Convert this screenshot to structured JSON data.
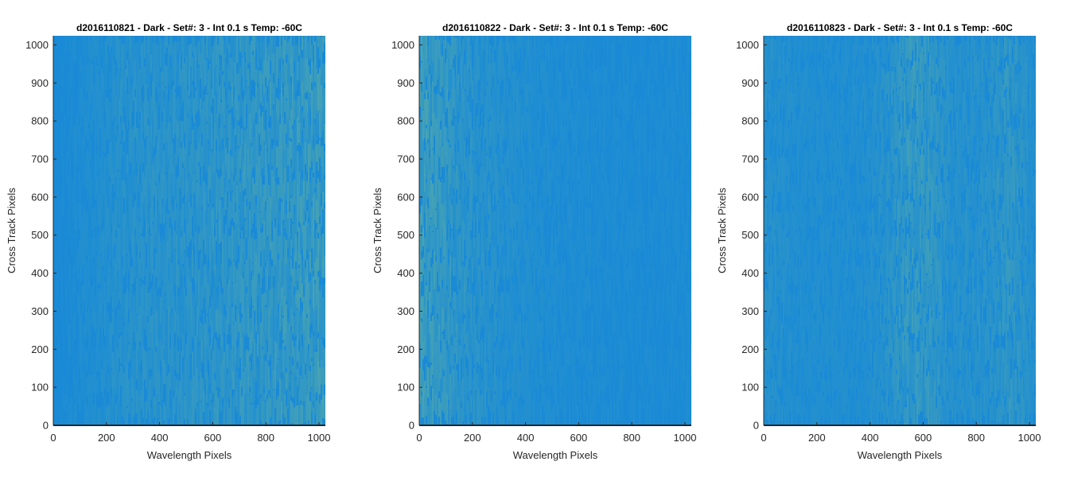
{
  "colors": {
    "base": "#1a8ad6",
    "highlight": "#7fc08a",
    "axis": "#262626"
  },
  "chart_data": [
    {
      "type": "heatmap",
      "title": "d2016110821 - Dark - Set#: 3 - Int 0.1 s Temp: -60C",
      "xlabel": "Wavelength Pixels",
      "ylabel": "Cross Track Pixels",
      "xlim": [
        0,
        1024
      ],
      "ylim": [
        0,
        1024
      ],
      "xticks": [
        0,
        200,
        400,
        600,
        800,
        1000
      ],
      "yticks": [
        0,
        100,
        200,
        300,
        400,
        500,
        600,
        700,
        800,
        900,
        1000
      ],
      "colormap": "parula",
      "brightness_profile": [
        [
          0,
          0.05
        ],
        [
          150,
          0.2
        ],
        [
          260,
          0.35
        ],
        [
          500,
          0.42
        ],
        [
          700,
          0.55
        ],
        [
          900,
          0.65
        ],
        [
          1024,
          0.8
        ]
      ]
    },
    {
      "type": "heatmap",
      "title": "d2016110822 - Dark - Set#: 3 - Int 0.1 s Temp: -60C",
      "xlabel": "Wavelength Pixels",
      "ylabel": "Cross Track Pixels",
      "xlim": [
        0,
        1024
      ],
      "ylim": [
        0,
        1024
      ],
      "xticks": [
        0,
        200,
        400,
        600,
        800,
        1000
      ],
      "yticks": [
        0,
        100,
        200,
        300,
        400,
        500,
        600,
        700,
        800,
        900,
        1000
      ],
      "colormap": "parula",
      "brightness_profile": [
        [
          0,
          0.85
        ],
        [
          60,
          0.7
        ],
        [
          150,
          0.45
        ],
        [
          300,
          0.28
        ],
        [
          500,
          0.15
        ],
        [
          700,
          0.12
        ],
        [
          900,
          0.1
        ],
        [
          1024,
          0.12
        ]
      ]
    },
    {
      "type": "heatmap",
      "title": "d2016110823 - Dark - Set#: 3 - Int 0.1 s Temp: -60C",
      "xlabel": "Wavelength Pixels",
      "ylabel": "Cross Track Pixels",
      "xlim": [
        0,
        1024
      ],
      "ylim": [
        0,
        1024
      ],
      "xticks": [
        0,
        200,
        400,
        600,
        800,
        1000
      ],
      "yticks": [
        0,
        100,
        200,
        300,
        400,
        500,
        600,
        700,
        800,
        900,
        1000
      ],
      "colormap": "parula",
      "brightness_profile": [
        [
          0,
          0.3
        ],
        [
          150,
          0.2
        ],
        [
          350,
          0.2
        ],
        [
          460,
          0.35
        ],
        [
          540,
          0.65
        ],
        [
          620,
          0.6
        ],
        [
          700,
          0.3
        ],
        [
          850,
          0.35
        ],
        [
          920,
          0.55
        ],
        [
          1024,
          0.25
        ]
      ]
    }
  ]
}
